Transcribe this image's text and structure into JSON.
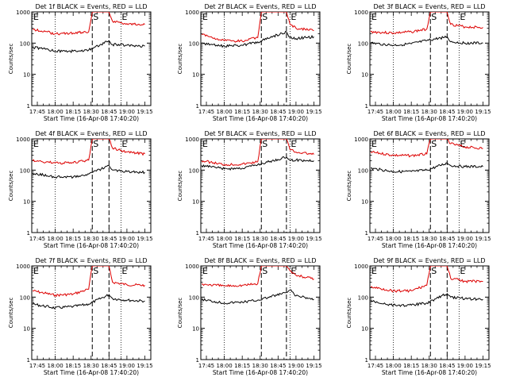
{
  "page": {
    "background": "#ffffff",
    "colors": {
      "events": "#000000",
      "lld": "#dd0000",
      "axes": "#000000"
    }
  },
  "chart_data": [
    {
      "type": "line",
      "title": "Det 1f BLACK = Events, RED = LLD",
      "xlabel": "Start Time (16-Apr-08 17:40:20)",
      "ylabel": "Counts/sec",
      "x_ticks": [
        "17:45",
        "18:00",
        "18:15",
        "18:30",
        "18:45",
        "19:00",
        "19:15"
      ],
      "y_ticks": [
        "1",
        "10",
        "100",
        "1000"
      ],
      "ylim": [
        1,
        1000
      ],
      "yscale": "log",
      "grid": false,
      "markers": [
        {
          "label": "E",
          "time": "17:41"
        },
        {
          "label": "S",
          "time": "18:31"
        },
        {
          "label": "E",
          "time": "18:55"
        }
      ],
      "dashed_lines": [
        "18:31",
        "18:45"
      ],
      "dotted_lines": [
        "18:00",
        "18:55"
      ],
      "series": [
        {
          "name": "RED = LLD",
          "color": "#dd0000",
          "times": [
            "17:41",
            "18:00",
            "18:15",
            "18:28",
            "18:31",
            "18:33",
            "18:45",
            "18:48",
            "19:00",
            "19:15"
          ],
          "values": [
            280,
            200,
            210,
            230,
            1000,
            1000,
            1000,
            500,
            420,
            400
          ]
        },
        {
          "name": "BLACK = Events",
          "color": "#000000",
          "times": [
            "17:41",
            "18:00",
            "18:15",
            "18:28",
            "18:45",
            "18:48",
            "19:00",
            "19:15"
          ],
          "values": [
            75,
            55,
            55,
            60,
            120,
            90,
            85,
            80
          ]
        }
      ]
    },
    {
      "type": "line",
      "title": "Det 2f BLACK = Events, RED = LLD",
      "xlabel": "Start Time (16-Apr-08 17:40:20)",
      "ylabel": "Counts/sec",
      "x_ticks": [
        "17:45",
        "18:00",
        "18:15",
        "18:30",
        "18:45",
        "19:00",
        "19:15"
      ],
      "y_ticks": [
        "1",
        "10",
        "100",
        "1000"
      ],
      "ylim": [
        1,
        1000
      ],
      "yscale": "log",
      "grid": false,
      "markers": [
        {
          "label": "E",
          "time": "17:41"
        },
        {
          "label": "S",
          "time": "18:31"
        },
        {
          "label": "E",
          "time": "18:55"
        }
      ],
      "dashed_lines": [
        "18:31",
        "18:52"
      ],
      "dotted_lines": [
        "18:00",
        "18:55"
      ],
      "series": [
        {
          "name": "RED = LLD",
          "color": "#dd0000",
          "times": [
            "17:41",
            "18:00",
            "18:15",
            "18:28",
            "18:31",
            "18:33",
            "18:52",
            "18:55",
            "19:00",
            "19:15"
          ],
          "values": [
            190,
            120,
            115,
            150,
            1000,
            1000,
            1000,
            400,
            300,
            250
          ]
        },
        {
          "name": "BLACK = Events",
          "color": "#000000",
          "times": [
            "17:41",
            "18:00",
            "18:15",
            "18:28",
            "18:52",
            "18:55",
            "19:00",
            "19:15"
          ],
          "values": [
            100,
            80,
            85,
            110,
            230,
            150,
            140,
            160
          ]
        }
      ]
    },
    {
      "type": "line",
      "title": "Det 3f BLACK = Events, RED = LLD",
      "xlabel": "Start Time (16-Apr-08 17:40:20)",
      "ylabel": "Counts/sec",
      "x_ticks": [
        "17:45",
        "18:00",
        "18:15",
        "18:30",
        "18:45",
        "19:00",
        "19:15"
      ],
      "y_ticks": [
        "1",
        "10",
        "100",
        "1000"
      ],
      "ylim": [
        1,
        1000
      ],
      "yscale": "log",
      "grid": false,
      "markers": [
        {
          "label": "E",
          "time": "17:41"
        },
        {
          "label": "S",
          "time": "18:31"
        },
        {
          "label": "E",
          "time": "18:55"
        }
      ],
      "dashed_lines": [
        "18:31",
        "18:45"
      ],
      "dotted_lines": [
        "18:00",
        "18:55"
      ],
      "series": [
        {
          "name": "RED = LLD",
          "color": "#dd0000",
          "times": [
            "17:41",
            "18:00",
            "18:15",
            "18:28",
            "18:31",
            "18:33",
            "18:45",
            "18:48",
            "19:00",
            "19:15"
          ],
          "values": [
            230,
            210,
            230,
            280,
            1000,
            1000,
            1000,
            400,
            330,
            320
          ]
        },
        {
          "name": "BLACK = Events",
          "color": "#000000",
          "times": [
            "17:41",
            "18:00",
            "18:15",
            "18:28",
            "18:45",
            "18:48",
            "19:00",
            "19:15"
          ],
          "values": [
            100,
            85,
            95,
            120,
            160,
            110,
            100,
            100
          ]
        }
      ]
    },
    {
      "type": "line",
      "title": "Det 4f BLACK = Events, RED = LLD",
      "xlabel": "Start Time (16-Apr-08 17:40:20)",
      "ylabel": "Counts/sec",
      "x_ticks": [
        "17:45",
        "18:00",
        "18:15",
        "18:30",
        "18:45",
        "19:00",
        "19:15"
      ],
      "y_ticks": [
        "1",
        "10",
        "100",
        "1000"
      ],
      "ylim": [
        1,
        1000
      ],
      "yscale": "log",
      "grid": false,
      "markers": [
        {
          "label": "E",
          "time": "17:41"
        },
        {
          "label": "S",
          "time": "18:31"
        },
        {
          "label": "E",
          "time": "18:55"
        }
      ],
      "dashed_lines": [
        "18:31",
        "18:45"
      ],
      "dotted_lines": [
        "18:00",
        "18:55"
      ],
      "series": [
        {
          "name": "RED = LLD",
          "color": "#dd0000",
          "times": [
            "17:41",
            "18:00",
            "18:15",
            "18:28",
            "18:31",
            "18:33",
            "18:45",
            "18:48",
            "19:00",
            "19:15"
          ],
          "values": [
            200,
            170,
            170,
            210,
            1000,
            1000,
            1000,
            500,
            380,
            330
          ]
        },
        {
          "name": "BLACK = Events",
          "color": "#000000",
          "times": [
            "17:41",
            "18:00",
            "18:15",
            "18:28",
            "18:45",
            "18:48",
            "19:00",
            "19:15"
          ],
          "values": [
            80,
            60,
            60,
            75,
            140,
            100,
            90,
            85
          ]
        }
      ]
    },
    {
      "type": "line",
      "title": "Det 5f BLACK = Events, RED = LLD",
      "xlabel": "Start Time (16-Apr-08 17:40:20)",
      "ylabel": "Counts/sec",
      "x_ticks": [
        "17:45",
        "18:00",
        "18:15",
        "18:30",
        "18:45",
        "19:00",
        "19:15"
      ],
      "y_ticks": [
        "1",
        "10",
        "100",
        "1000"
      ],
      "ylim": [
        1,
        1000
      ],
      "yscale": "log",
      "grid": false,
      "markers": [
        {
          "label": "E",
          "time": "17:41"
        },
        {
          "label": "S",
          "time": "18:31"
        },
        {
          "label": "E",
          "time": "18:55"
        }
      ],
      "dashed_lines": [
        "18:31",
        "18:52"
      ],
      "dotted_lines": [
        "18:00",
        "18:55"
      ],
      "series": [
        {
          "name": "RED = LLD",
          "color": "#dd0000",
          "times": [
            "17:41",
            "18:00",
            "18:15",
            "18:28",
            "18:31",
            "18:33",
            "18:52",
            "18:55",
            "19:00",
            "19:15"
          ],
          "values": [
            200,
            150,
            155,
            185,
            1000,
            1000,
            1000,
            450,
            380,
            320
          ]
        },
        {
          "name": "BLACK = Events",
          "color": "#000000",
          "times": [
            "17:41",
            "18:00",
            "18:15",
            "18:28",
            "18:52",
            "18:55",
            "19:00",
            "19:15"
          ],
          "values": [
            140,
            110,
            115,
            150,
            260,
            210,
            210,
            200
          ]
        }
      ]
    },
    {
      "type": "line",
      "title": "Det 6f BLACK = Events, RED = LLD",
      "xlabel": "Start Time (16-Apr-08 17:40:20)",
      "ylabel": "Counts/sec",
      "x_ticks": [
        "17:45",
        "18:00",
        "18:15",
        "18:30",
        "18:45",
        "19:00",
        "19:15"
      ],
      "y_ticks": [
        "1",
        "10",
        "100",
        "1000"
      ],
      "ylim": [
        1,
        1000
      ],
      "yscale": "log",
      "grid": false,
      "markers": [
        {
          "label": "E",
          "time": "17:41"
        },
        {
          "label": "S",
          "time": "18:31"
        },
        {
          "label": "E",
          "time": "18:55"
        }
      ],
      "dashed_lines": [
        "18:31",
        "18:45"
      ],
      "dotted_lines": [
        "18:00",
        "18:55"
      ],
      "series": [
        {
          "name": "RED = LLD",
          "color": "#dd0000",
          "times": [
            "17:41",
            "18:00",
            "18:15",
            "18:28",
            "18:31",
            "18:33",
            "18:45",
            "18:48",
            "19:00",
            "19:15"
          ],
          "values": [
            380,
            300,
            290,
            330,
            1000,
            1000,
            1000,
            700,
            550,
            500
          ]
        },
        {
          "name": "BLACK = Events",
          "color": "#000000",
          "times": [
            "17:41",
            "18:00",
            "18:15",
            "18:28",
            "18:45",
            "18:48",
            "19:00",
            "19:15"
          ],
          "values": [
            115,
            90,
            90,
            100,
            170,
            140,
            130,
            130
          ]
        }
      ]
    },
    {
      "type": "line",
      "title": "Det 7f BLACK = Events, RED = LLD",
      "xlabel": "Start Time (16-Apr-08 17:40:20)",
      "ylabel": "Counts/sec",
      "x_ticks": [
        "17:45",
        "18:00",
        "18:15",
        "18:30",
        "18:45",
        "19:00",
        "19:15"
      ],
      "y_ticks": [
        "1",
        "10",
        "100",
        "1000"
      ],
      "ylim": [
        1,
        1000
      ],
      "yscale": "log",
      "grid": false,
      "markers": [
        {
          "label": "E",
          "time": "17:41"
        },
        {
          "label": "S",
          "time": "18:31"
        },
        {
          "label": "E",
          "time": "18:55"
        }
      ],
      "dashed_lines": [
        "18:31",
        "18:45"
      ],
      "dotted_lines": [
        "18:00",
        "18:55"
      ],
      "series": [
        {
          "name": "RED = LLD",
          "color": "#dd0000",
          "times": [
            "17:41",
            "18:00",
            "18:15",
            "18:28",
            "18:31",
            "18:33",
            "18:45",
            "18:48",
            "19:00",
            "19:15"
          ],
          "values": [
            160,
            115,
            125,
            180,
            1000,
            1000,
            1000,
            300,
            250,
            240
          ]
        },
        {
          "name": "BLACK = Events",
          "color": "#000000",
          "times": [
            "17:41",
            "18:00",
            "18:15",
            "18:28",
            "18:45",
            "18:48",
            "19:00",
            "19:15"
          ],
          "values": [
            60,
            45,
            50,
            60,
            120,
            90,
            80,
            75
          ]
        }
      ]
    },
    {
      "type": "line",
      "title": "Det 8f BLACK = Events, RED = LLD",
      "xlabel": "Start Time (16-Apr-08 17:40:20)",
      "ylabel": "Counts/sec",
      "x_ticks": [
        "17:45",
        "18:00",
        "18:15",
        "18:30",
        "18:45",
        "19:00",
        "19:15"
      ],
      "y_ticks": [
        "1",
        "10",
        "100",
        "1000"
      ],
      "ylim": [
        1,
        1000
      ],
      "yscale": "log",
      "grid": false,
      "markers": [
        {
          "label": "E",
          "time": "17:41"
        },
        {
          "label": "S",
          "time": "18:31"
        },
        {
          "label": "E",
          "time": "18:55"
        }
      ],
      "dashed_lines": [
        "18:31",
        "18:52"
      ],
      "dotted_lines": [
        "18:00",
        "18:55"
      ],
      "series": [
        {
          "name": "RED = LLD",
          "color": "#dd0000",
          "times": [
            "17:41",
            "18:00",
            "18:15",
            "18:28",
            "18:31",
            "18:33",
            "18:52",
            "18:55",
            "19:00",
            "19:15"
          ],
          "values": [
            260,
            230,
            240,
            270,
            1000,
            1000,
            1000,
            700,
            500,
            380
          ]
        },
        {
          "name": "BLACK = Events",
          "color": "#000000",
          "times": [
            "17:41",
            "18:00",
            "18:15",
            "18:28",
            "18:52",
            "18:55",
            "19:00",
            "19:15"
          ],
          "values": [
            85,
            65,
            70,
            80,
            140,
            170,
            110,
            85
          ]
        }
      ]
    },
    {
      "type": "line",
      "title": "Det 9f BLACK = Events, RED = LLD",
      "xlabel": "Start Time (16-Apr-08 17:40:20)",
      "ylabel": "Counts/sec",
      "x_ticks": [
        "17:45",
        "18:00",
        "18:15",
        "18:30",
        "18:45",
        "19:00",
        "19:15"
      ],
      "y_ticks": [
        "1",
        "10",
        "100",
        "1000"
      ],
      "ylim": [
        1,
        1000
      ],
      "yscale": "log",
      "grid": false,
      "markers": [
        {
          "label": "E",
          "time": "17:41"
        },
        {
          "label": "S",
          "time": "18:31"
        },
        {
          "label": "E",
          "time": "18:55"
        }
      ],
      "dashed_lines": [
        "18:31",
        "18:45"
      ],
      "dotted_lines": [
        "18:00",
        "18:55"
      ],
      "series": [
        {
          "name": "RED = LLD",
          "color": "#dd0000",
          "times": [
            "17:41",
            "18:00",
            "18:15",
            "18:28",
            "18:31",
            "18:33",
            "18:45",
            "18:48",
            "19:00",
            "19:15"
          ],
          "values": [
            210,
            160,
            160,
            240,
            1000,
            1000,
            1000,
            400,
            320,
            320
          ]
        },
        {
          "name": "BLACK = Events",
          "color": "#000000",
          "times": [
            "17:41",
            "18:00",
            "18:15",
            "18:28",
            "18:45",
            "18:48",
            "19:00",
            "19:15"
          ],
          "values": [
            75,
            55,
            55,
            65,
            130,
            100,
            90,
            85
          ]
        }
      ]
    }
  ]
}
